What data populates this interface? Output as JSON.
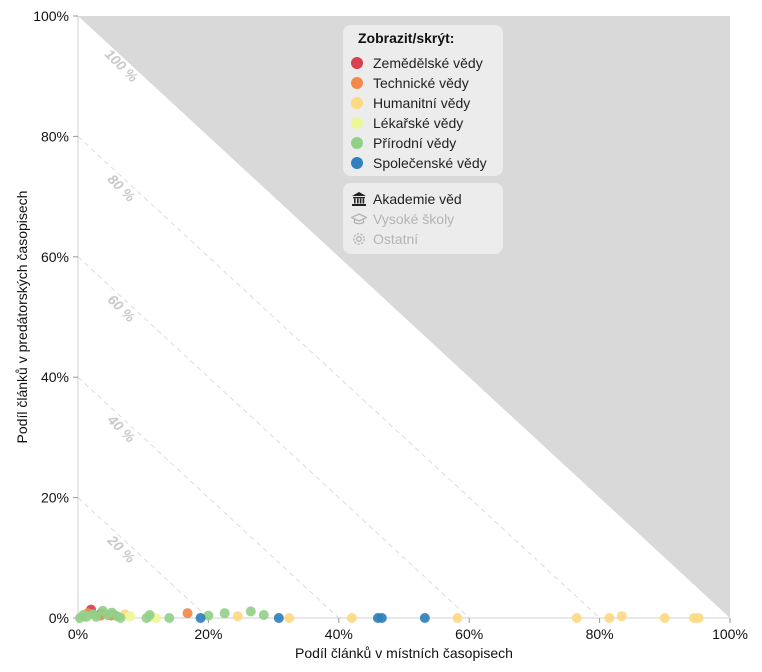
{
  "chart_data": {
    "type": "scatter",
    "xlabel": "Podíl článků v místních časopisech",
    "ylabel": "Podíl článků v predátorských časopisech",
    "xlim": [
      0,
      100
    ],
    "ylim": [
      0,
      100
    ],
    "x_ticks": [
      "0%",
      "20%",
      "40%",
      "60%",
      "80%",
      "100%"
    ],
    "y_ticks": [
      "0%",
      "20%",
      "40%",
      "60%",
      "80%",
      "100%"
    ],
    "diagonal_labels": [
      "20 %",
      "40 %",
      "60 %",
      "80 %",
      "100 %"
    ],
    "grid": false,
    "legend_position": "top-center",
    "series": [
      {
        "name": "Zemědělské vědy",
        "color": "#d7404e",
        "points": [
          [
            2.0,
            1.4
          ],
          [
            3.5,
            0.7
          ],
          [
            5.5,
            0.5
          ]
        ]
      },
      {
        "name": "Technické vědy",
        "color": "#f4894d",
        "points": [
          [
            1.5,
            0.8
          ],
          [
            3.5,
            0.4
          ],
          [
            16.8,
            0.8
          ],
          [
            5.0,
            0.4
          ]
        ]
      },
      {
        "name": "Humanitní vědy",
        "color": "#fdd983",
        "points": [
          [
            7.2,
            0.6
          ],
          [
            11.0,
            0.2
          ],
          [
            24.5,
            0.3
          ],
          [
            32.4,
            0.0
          ],
          [
            42.0,
            0.0
          ],
          [
            58.2,
            0.0
          ],
          [
            76.5,
            0.0
          ],
          [
            81.5,
            0.0
          ],
          [
            83.4,
            0.3
          ],
          [
            90.0,
            0.0
          ],
          [
            94.5,
            0.0
          ],
          [
            95.2,
            0.0
          ]
        ]
      },
      {
        "name": "Lékařské vědy",
        "color": "#eef69a",
        "points": [
          [
            1.2,
            0.3
          ],
          [
            8.0,
            0.3
          ],
          [
            12.0,
            0.0
          ]
        ]
      },
      {
        "name": "Přírodní vědy",
        "color": "#92d08a",
        "points": [
          [
            0.3,
            0.0
          ],
          [
            0.8,
            0.5
          ],
          [
            1.3,
            0.2
          ],
          [
            2.3,
            0.6
          ],
          [
            2.8,
            0.2
          ],
          [
            3.8,
            1.2
          ],
          [
            4.5,
            0.5
          ],
          [
            5.2,
            0.9
          ],
          [
            6.0,
            0.3
          ],
          [
            6.5,
            0.0
          ],
          [
            10.5,
            0.0
          ],
          [
            11.0,
            0.5
          ],
          [
            14.0,
            0.0
          ],
          [
            20.0,
            0.4
          ],
          [
            22.5,
            0.8
          ],
          [
            26.5,
            1.1
          ],
          [
            28.5,
            0.5
          ]
        ]
      },
      {
        "name": "Společenské vědy",
        "color": "#2f80bc",
        "points": [
          [
            18.8,
            0.0
          ],
          [
            30.8,
            0.0
          ],
          [
            46.0,
            0.0
          ],
          [
            46.6,
            0.0
          ],
          [
            53.2,
            0.0
          ]
        ]
      }
    ]
  },
  "legend": {
    "title": "Zobrazit/skrýt:",
    "institution_types": [
      {
        "label": "Akademie věd",
        "icon": "bank-icon",
        "active": true
      },
      {
        "label": "Vysoké školy",
        "icon": "graduation-cap-icon",
        "active": false
      },
      {
        "label": "Ostatní",
        "icon": "gear-icon",
        "active": false
      }
    ]
  }
}
